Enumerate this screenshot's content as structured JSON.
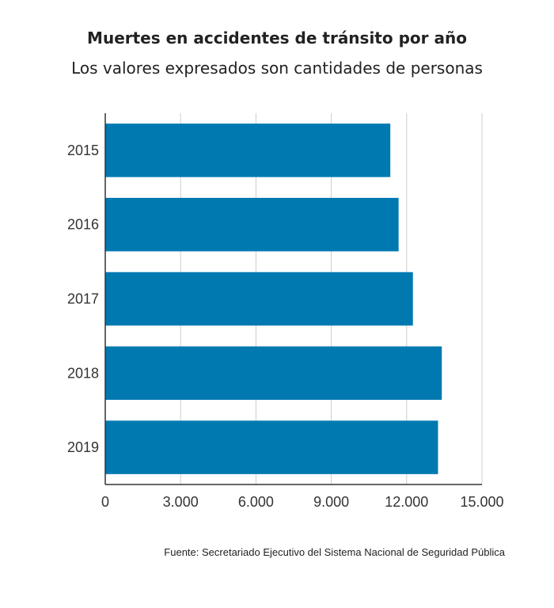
{
  "title": "Muertes en accidentes de tránsito por año",
  "subtitle": "Los valores expresados son cantidades de personas",
  "source": "Fuente: Secretariado Ejecutivo del Sistema Nacional de Seguridad Pública",
  "colors": {
    "bar": "#0079b1",
    "grid": "#cccccc",
    "axis": "#333333"
  },
  "chart_data": {
    "type": "bar",
    "orientation": "horizontal",
    "categories": [
      "2015",
      "2016",
      "2017",
      "2018",
      "2019"
    ],
    "values": [
      11350,
      11680,
      12250,
      13400,
      13250
    ],
    "xlim": [
      0,
      15000
    ],
    "ticks": [
      0,
      3000,
      6000,
      9000,
      12000,
      15000
    ],
    "tick_labels": [
      "0",
      "3.000",
      "6.000",
      "9.000",
      "12.000",
      "15.000"
    ],
    "grid": "vertical",
    "title": "Muertes en accidentes de tránsito por año",
    "subtitle": "Los valores expresados son cantidades de personas"
  }
}
